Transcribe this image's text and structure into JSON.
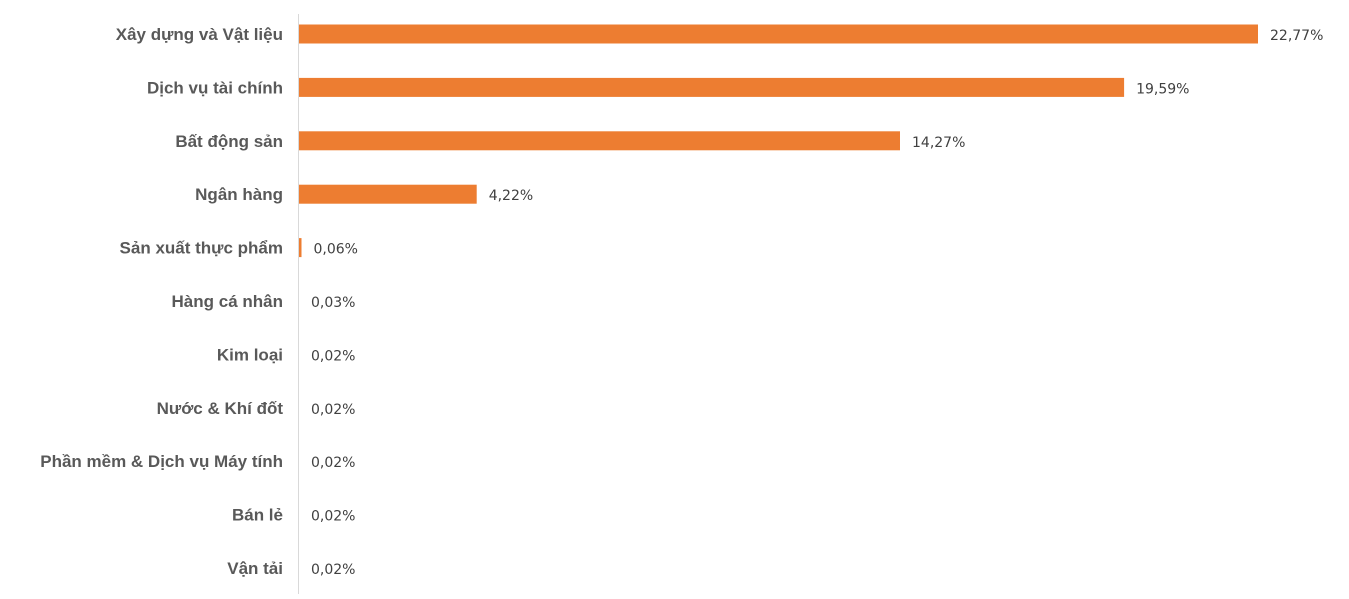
{
  "chart_data": {
    "type": "bar",
    "orientation": "horizontal",
    "title": "",
    "xlabel": "",
    "ylabel": "",
    "categories": [
      "Xây dựng và Vật liệu",
      "Dịch vụ tài chính",
      "Bất động sản",
      "Ngân hàng",
      "Sản xuất thực phẩm",
      "Hàng cá nhân",
      "Kim loại",
      "Nước & Khí đốt",
      "Phần mềm & Dịch vụ Máy tính",
      "Bán lẻ",
      "Vận tải"
    ],
    "values": [
      22.77,
      19.59,
      14.27,
      4.22,
      0.06,
      0.03,
      0.02,
      0.02,
      0.02,
      0.02,
      0.02
    ],
    "value_labels": [
      "22,77%",
      "19,59%",
      "14,27%",
      "4,22%",
      "0,06%",
      "0,03%",
      "0,02%",
      "0,02%",
      "0,02%",
      "0,02%",
      "0,02%"
    ],
    "xlim": [
      0,
      22.77
    ],
    "grid": false,
    "legend": "none",
    "bar_color": "#ED7D31"
  }
}
